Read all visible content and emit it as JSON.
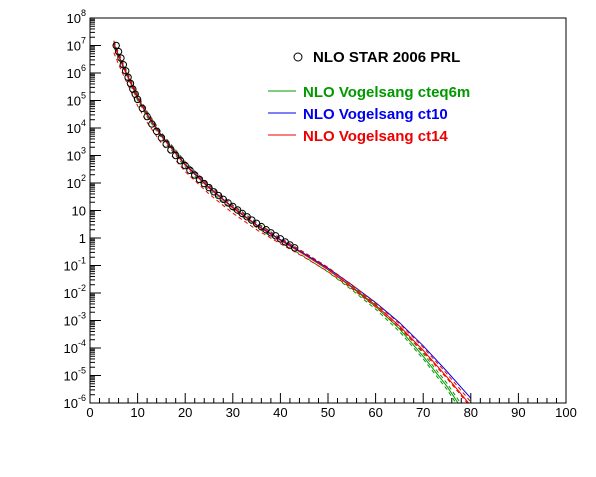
{
  "chart_data": {
    "type": "line",
    "title": "",
    "xlabel": "",
    "ylabel": "",
    "xlim": [
      0,
      100
    ],
    "ylim": [
      1e-06,
      100000000.0
    ],
    "y_scale": "log",
    "grid": false,
    "legend_placement": "top-right",
    "x_ticks": [
      "0",
      "10",
      "20",
      "30",
      "40",
      "50",
      "60",
      "70",
      "80",
      "90",
      "100"
    ],
    "y_ticks": [
      {
        "base": "10",
        "exp": "-6"
      },
      {
        "base": "10",
        "exp": "-5"
      },
      {
        "base": "10",
        "exp": "-4"
      },
      {
        "base": "10",
        "exp": "-3"
      },
      {
        "base": "10",
        "exp": "-2"
      },
      {
        "base": "10",
        "exp": "-1"
      },
      {
        "base": "1",
        "exp": ""
      },
      {
        "base": "10",
        "exp": ""
      },
      {
        "base": "10",
        "exp": "2"
      },
      {
        "base": "10",
        "exp": "3"
      },
      {
        "base": "10",
        "exp": "4"
      },
      {
        "base": "10",
        "exp": "5"
      },
      {
        "base": "10",
        "exp": "6"
      },
      {
        "base": "10",
        "exp": "7"
      },
      {
        "base": "10",
        "exp": "8"
      }
    ],
    "points": {
      "name": "NLO STAR 2006 PRL",
      "color": "#000000",
      "marker": "open-circle",
      "x": [
        5.5,
        6.0,
        6.5,
        7.0,
        7.5,
        8.0,
        8.5,
        9.0,
        9.5,
        10.0,
        11.0,
        12.0,
        13.0,
        14.0,
        15.0,
        16.0,
        17.0,
        18.0,
        19.0,
        20.0,
        21.0,
        22.0,
        23.0,
        24.0,
        25.0,
        26.0,
        27.0,
        28.0,
        29.0,
        30.0,
        31.0,
        32.0,
        33.0,
        34.0,
        35.0,
        36.0,
        37.0,
        38.0,
        39.0,
        40.0,
        41.0,
        42.0,
        43.0
      ],
      "y": [
        10000000.0,
        6000000.0,
        3500000.0,
        2000000.0,
        1200000.0,
        700000.0,
        420000.0,
        260000.0,
        170000.0,
        110000.0,
        52000.0,
        26000.0,
        14000.0,
        7600.0,
        4400.0,
        2600.0,
        1600.0,
        1000.0,
        650,
        430,
        290,
        195,
        135,
        95,
        68,
        48,
        35,
        25.5,
        18.8,
        14,
        10.5,
        7.8,
        5.9,
        4.5,
        3.4,
        2.6,
        2.0,
        1.55,
        1.2,
        0.93,
        0.72,
        0.56,
        0.44
      ]
    },
    "series": [
      {
        "name": "NLO Vogelsang cteq6m",
        "color": "#009900",
        "x": [
          5,
          6,
          7,
          8,
          10,
          12,
          15,
          20,
          25,
          30,
          35,
          40,
          45,
          50,
          55,
          60,
          65,
          70,
          75,
          80
        ],
        "y": [
          12000000.0,
          4500000.0,
          1800000.0,
          750000.0,
          130000.0,
          32000.0,
          5500.0,
          480.0,
          70,
          13,
          3.0,
          0.85,
          0.25,
          0.07,
          0.016,
          0.0032,
          0.0005,
          5e-05,
          4e-06,
          2e-07
        ],
        "curves": [
          {
            "style": "solid",
            "x": [
              5,
              6,
              7,
              8,
              10,
              12,
              15,
              20,
              25,
              30,
              35,
              40,
              45,
              50,
              55,
              60,
              65,
              70,
              75,
              80
            ],
            "y": [
              12000000.0,
              4500000.0,
              1800000.0,
              750000.0,
              130000.0,
              32000.0,
              5500.0,
              480.0,
              70,
              13,
              3.0,
              0.85,
              0.25,
              0.07,
              0.016,
              0.0032,
              0.0005,
              5e-05,
              4e-06,
              2e-07
            ]
          },
          {
            "style": "dashed",
            "x": [
              5,
              6,
              7,
              8,
              10,
              12,
              15,
              20,
              25,
              30,
              35,
              40,
              45,
              50,
              55,
              60,
              65,
              70,
              75,
              80
            ],
            "y": [
              15000000.0,
              5600000.0,
              2200000.0,
              940000.0,
              160000.0,
              40000.0,
              6800.0,
              600.0,
              86,
              16,
              3.7,
              1.0,
              0.3,
              0.085,
              0.019,
              0.0039,
              0.00062,
              6.3e-05,
              5.2e-06,
              2.8e-07
            ]
          },
          {
            "style": "dashed",
            "x": [
              5,
              6,
              7,
              8,
              10,
              12,
              15,
              20,
              25,
              30,
              35,
              40,
              45,
              50,
              55,
              60,
              65,
              70,
              75,
              80
            ],
            "y": [
              9000000.0,
              3400000.0,
              1400000.0,
              580000.0,
              100000.0,
              25000.0,
              4300.0,
              380.0,
              56,
              10.5,
              2.4,
              0.7,
              0.21,
              0.058,
              0.013,
              0.0026,
              0.0004,
              4e-05,
              3.1e-06,
              1.5e-07
            ]
          }
        ]
      },
      {
        "name": "NLO Vogelsang ct10",
        "color": "#0000ee",
        "x": [
          5,
          6,
          7,
          8,
          10,
          12,
          15,
          20,
          25,
          30,
          35,
          40,
          45,
          50,
          55,
          60,
          65,
          70,
          75,
          80
        ],
        "y": [
          11500000.0,
          4300000.0,
          1700000.0,
          720000.0,
          125000.0,
          31000.0,
          5300.0,
          470.0,
          69,
          13,
          3.0,
          0.88,
          0.27,
          0.08,
          0.02,
          0.0045,
          0.00085,
          0.00012,
          1.4e-05,
          1.5e-06
        ],
        "curves": [
          {
            "style": "solid",
            "x": [
              5,
              6,
              7,
              8,
              10,
              12,
              15,
              20,
              25,
              30,
              35,
              40,
              45,
              50,
              55,
              60,
              65,
              70,
              75,
              80
            ],
            "y": [
              11500000.0,
              4300000.0,
              1700000.0,
              720000.0,
              125000.0,
              31000.0,
              5300.0,
              470.0,
              69,
              13,
              3.0,
              0.88,
              0.27,
              0.08,
              0.02,
              0.0045,
              0.00085,
              0.00012,
              1.4e-05,
              1.5e-06
            ]
          }
        ]
      },
      {
        "name": "NLO Vogelsang ct14",
        "color": "#ee0000",
        "x": [
          5,
          6,
          7,
          8,
          10,
          12,
          15,
          20,
          25,
          30,
          35,
          40,
          45,
          50,
          55,
          60,
          65,
          70,
          75,
          80
        ],
        "y": [
          11000000.0,
          4100000.0,
          1600000.0,
          680000.0,
          118000.0,
          29000.0,
          5000.0,
          440.0,
          65,
          12.3,
          2.85,
          0.82,
          0.25,
          0.072,
          0.017,
          0.0036,
          0.00063,
          8.2e-05,
          8.8e-06,
          8e-07
        ],
        "curves": [
          {
            "style": "solid",
            "x": [
              5,
              6,
              7,
              8,
              10,
              12,
              15,
              20,
              25,
              30,
              35,
              40,
              45,
              50,
              55,
              60,
              65,
              70,
              75,
              80
            ],
            "y": [
              11000000.0,
              4100000.0,
              1600000.0,
              680000.0,
              118000.0,
              29000.0,
              5000.0,
              440.0,
              65,
              12.3,
              2.85,
              0.82,
              0.25,
              0.072,
              0.017,
              0.0036,
              0.00063,
              8.2e-05,
              8.8e-06,
              8e-07
            ]
          },
          {
            "style": "dashed",
            "x": [
              5,
              6,
              7,
              8,
              10,
              12,
              15,
              20,
              25,
              30,
              35,
              40,
              45,
              50,
              55,
              60,
              65,
              70,
              75,
              80
            ],
            "y": [
              14000000.0,
              5200000.0,
              2000000.0,
              860000.0,
              150000.0,
              37000.0,
              6300.0,
              560.0,
              80,
              15,
              3.4,
              0.98,
              0.3,
              0.085,
              0.02,
              0.0043,
              0.00077,
              0.000105,
              1.15e-05,
              1.1e-06
            ]
          },
          {
            "style": "dashed",
            "x": [
              5,
              6,
              7,
              8,
              10,
              12,
              15,
              20,
              25,
              30,
              35,
              40,
              45,
              50,
              55,
              60,
              65,
              70,
              75,
              80
            ],
            "y": [
              5500000.0,
              2100000.0,
              840000.0,
              360000.0,
              64000.0,
              16000.0,
              2800.0,
              260.0,
              40,
              8.0,
              2.0,
              0.62,
              0.2,
              0.06,
              0.0145,
              0.0031,
              0.00055,
              7.2e-05,
              7.8e-06,
              7e-07
            ]
          }
        ]
      }
    ]
  },
  "legend": {
    "points_label": "NLO STAR 2006 PRL",
    "cteq6m_label": "NLO Vogelsang cteq6m",
    "ct10_label": "NLO Vogelsang ct10",
    "ct14_label": "NLO Vogelsang ct14",
    "cteq6m_color": "#009900",
    "ct10_color": "#0000ee",
    "ct14_color": "#ee0000"
  }
}
